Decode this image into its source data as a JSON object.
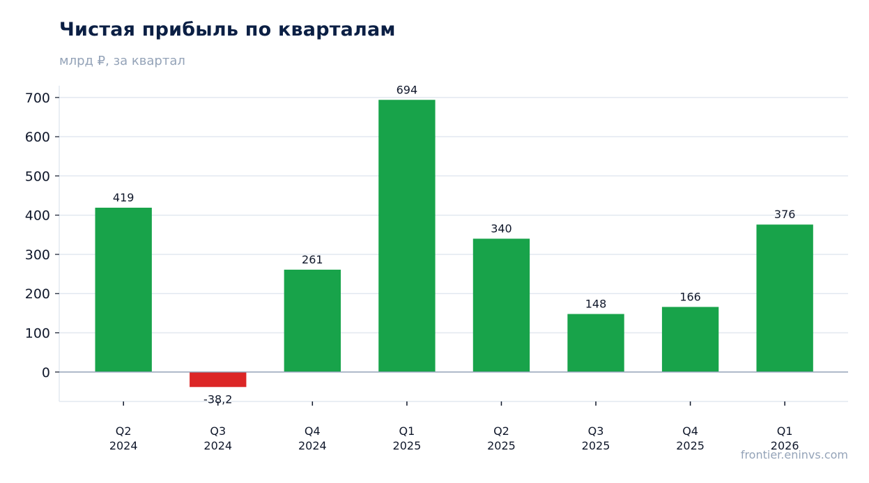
{
  "header": {
    "title": "Чистая прибыль по кварталам",
    "subtitle": "млрд ₽, за квартал"
  },
  "source": "frontier.eninvs.com",
  "colors": {
    "positive": "#18a34a",
    "negative": "#dc2626",
    "grid": "#e2e8f0",
    "baseline": "#94a3b8"
  },
  "chart_data": {
    "type": "bar",
    "title": "Чистая прибыль по кварталам",
    "subtitle": "млрд ₽, за квартал",
    "xlabel": "",
    "ylabel": "",
    "categories": [
      [
        "Q2",
        "2024"
      ],
      [
        "Q3",
        "2024"
      ],
      [
        "Q4",
        "2024"
      ],
      [
        "Q1",
        "2025"
      ],
      [
        "Q2",
        "2025"
      ],
      [
        "Q3",
        "2025"
      ],
      [
        "Q4",
        "2025"
      ],
      [
        "Q1",
        "2026"
      ]
    ],
    "values": [
      419,
      -38.2,
      261,
      694,
      340,
      148,
      166,
      376
    ],
    "value_labels": [
      "419",
      "-38,2",
      "261",
      "694",
      "340",
      "148",
      "166",
      "376"
    ],
    "yticks": [
      0,
      100,
      200,
      300,
      400,
      500,
      600,
      700
    ],
    "ylim": [
      -75,
      730
    ],
    "grid": true,
    "legend": "none"
  }
}
